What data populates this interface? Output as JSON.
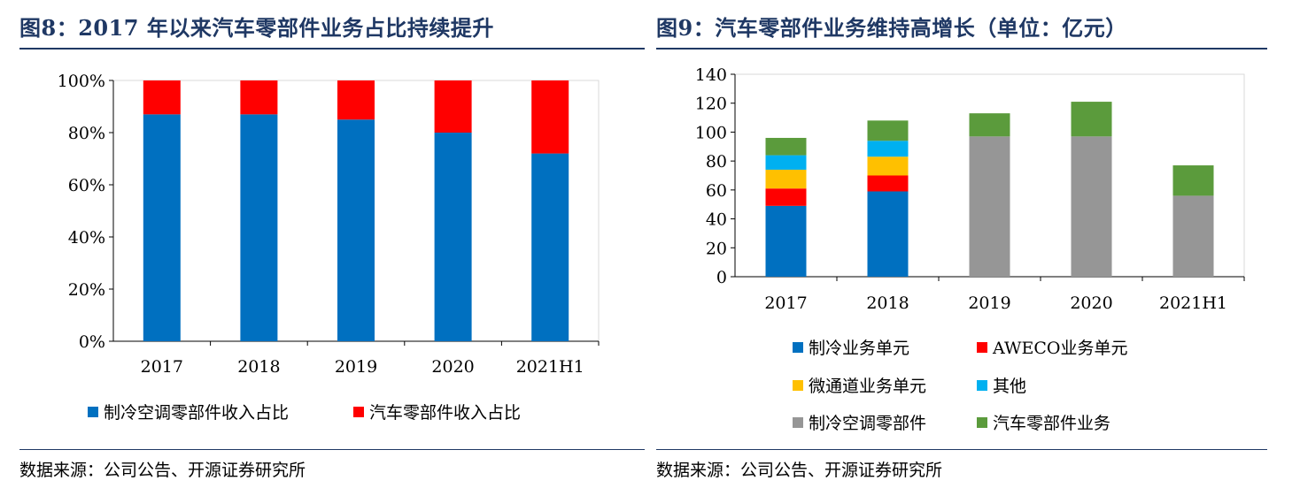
{
  "left": {
    "title": "图8：2017 年以来汽车零部件业务占比持续提升",
    "source": "数据来源：公司公告、开源证券研究所"
  },
  "right": {
    "title": "图9：汽车零部件业务维持高增长（单位：亿元）",
    "source": "数据来源：公司公告、开源证券研究所"
  },
  "chart_data": [
    {
      "type": "bar",
      "stacked": true,
      "title": "图8：2017 年以来汽车零部件业务占比持续提升",
      "categories": [
        "2017",
        "2018",
        "2019",
        "2020",
        "2021H1"
      ],
      "ylim": [
        0,
        100
      ],
      "yticks": [
        "0%",
        "20%",
        "40%",
        "60%",
        "80%",
        "100%"
      ],
      "grid": false,
      "legend_position": "bottom",
      "series": [
        {
          "name": "制冷空调零部件收入占比",
          "color": "#0070C0",
          "values": [
            87,
            87,
            85,
            80,
            72
          ]
        },
        {
          "name": "汽车零部件收入占比",
          "color": "#FF0000",
          "values": [
            13,
            13,
            15,
            20,
            28
          ]
        }
      ]
    },
    {
      "type": "bar",
      "stacked": true,
      "title": "图9：汽车零部件业务维持高增长（单位：亿元）",
      "categories": [
        "2017",
        "2018",
        "2019",
        "2020",
        "2021H1"
      ],
      "ylim": [
        0,
        140
      ],
      "yticks": [
        "0",
        "20",
        "40",
        "60",
        "80",
        "100",
        "120",
        "140"
      ],
      "grid": false,
      "legend_position": "bottom",
      "series": [
        {
          "name": "制冷业务单元",
          "color": "#0070C0",
          "values": [
            49,
            59,
            0,
            0,
            0
          ]
        },
        {
          "name": "AWECO业务单元",
          "color": "#FF0000",
          "values": [
            12,
            11,
            0,
            0,
            0
          ]
        },
        {
          "name": "微通道业务单元",
          "color": "#FFC000",
          "values": [
            13,
            13,
            0,
            0,
            0
          ]
        },
        {
          "name": "其他",
          "color": "#00B0F0",
          "values": [
            10,
            11,
            0,
            0,
            0
          ]
        },
        {
          "name": "制冷空调零部件",
          "color": "#969696",
          "values": [
            0,
            0,
            97,
            97,
            56
          ]
        },
        {
          "name": "汽车零部件业务",
          "color": "#5B9B3C",
          "values": [
            12,
            14,
            16,
            24,
            21
          ]
        }
      ]
    }
  ]
}
